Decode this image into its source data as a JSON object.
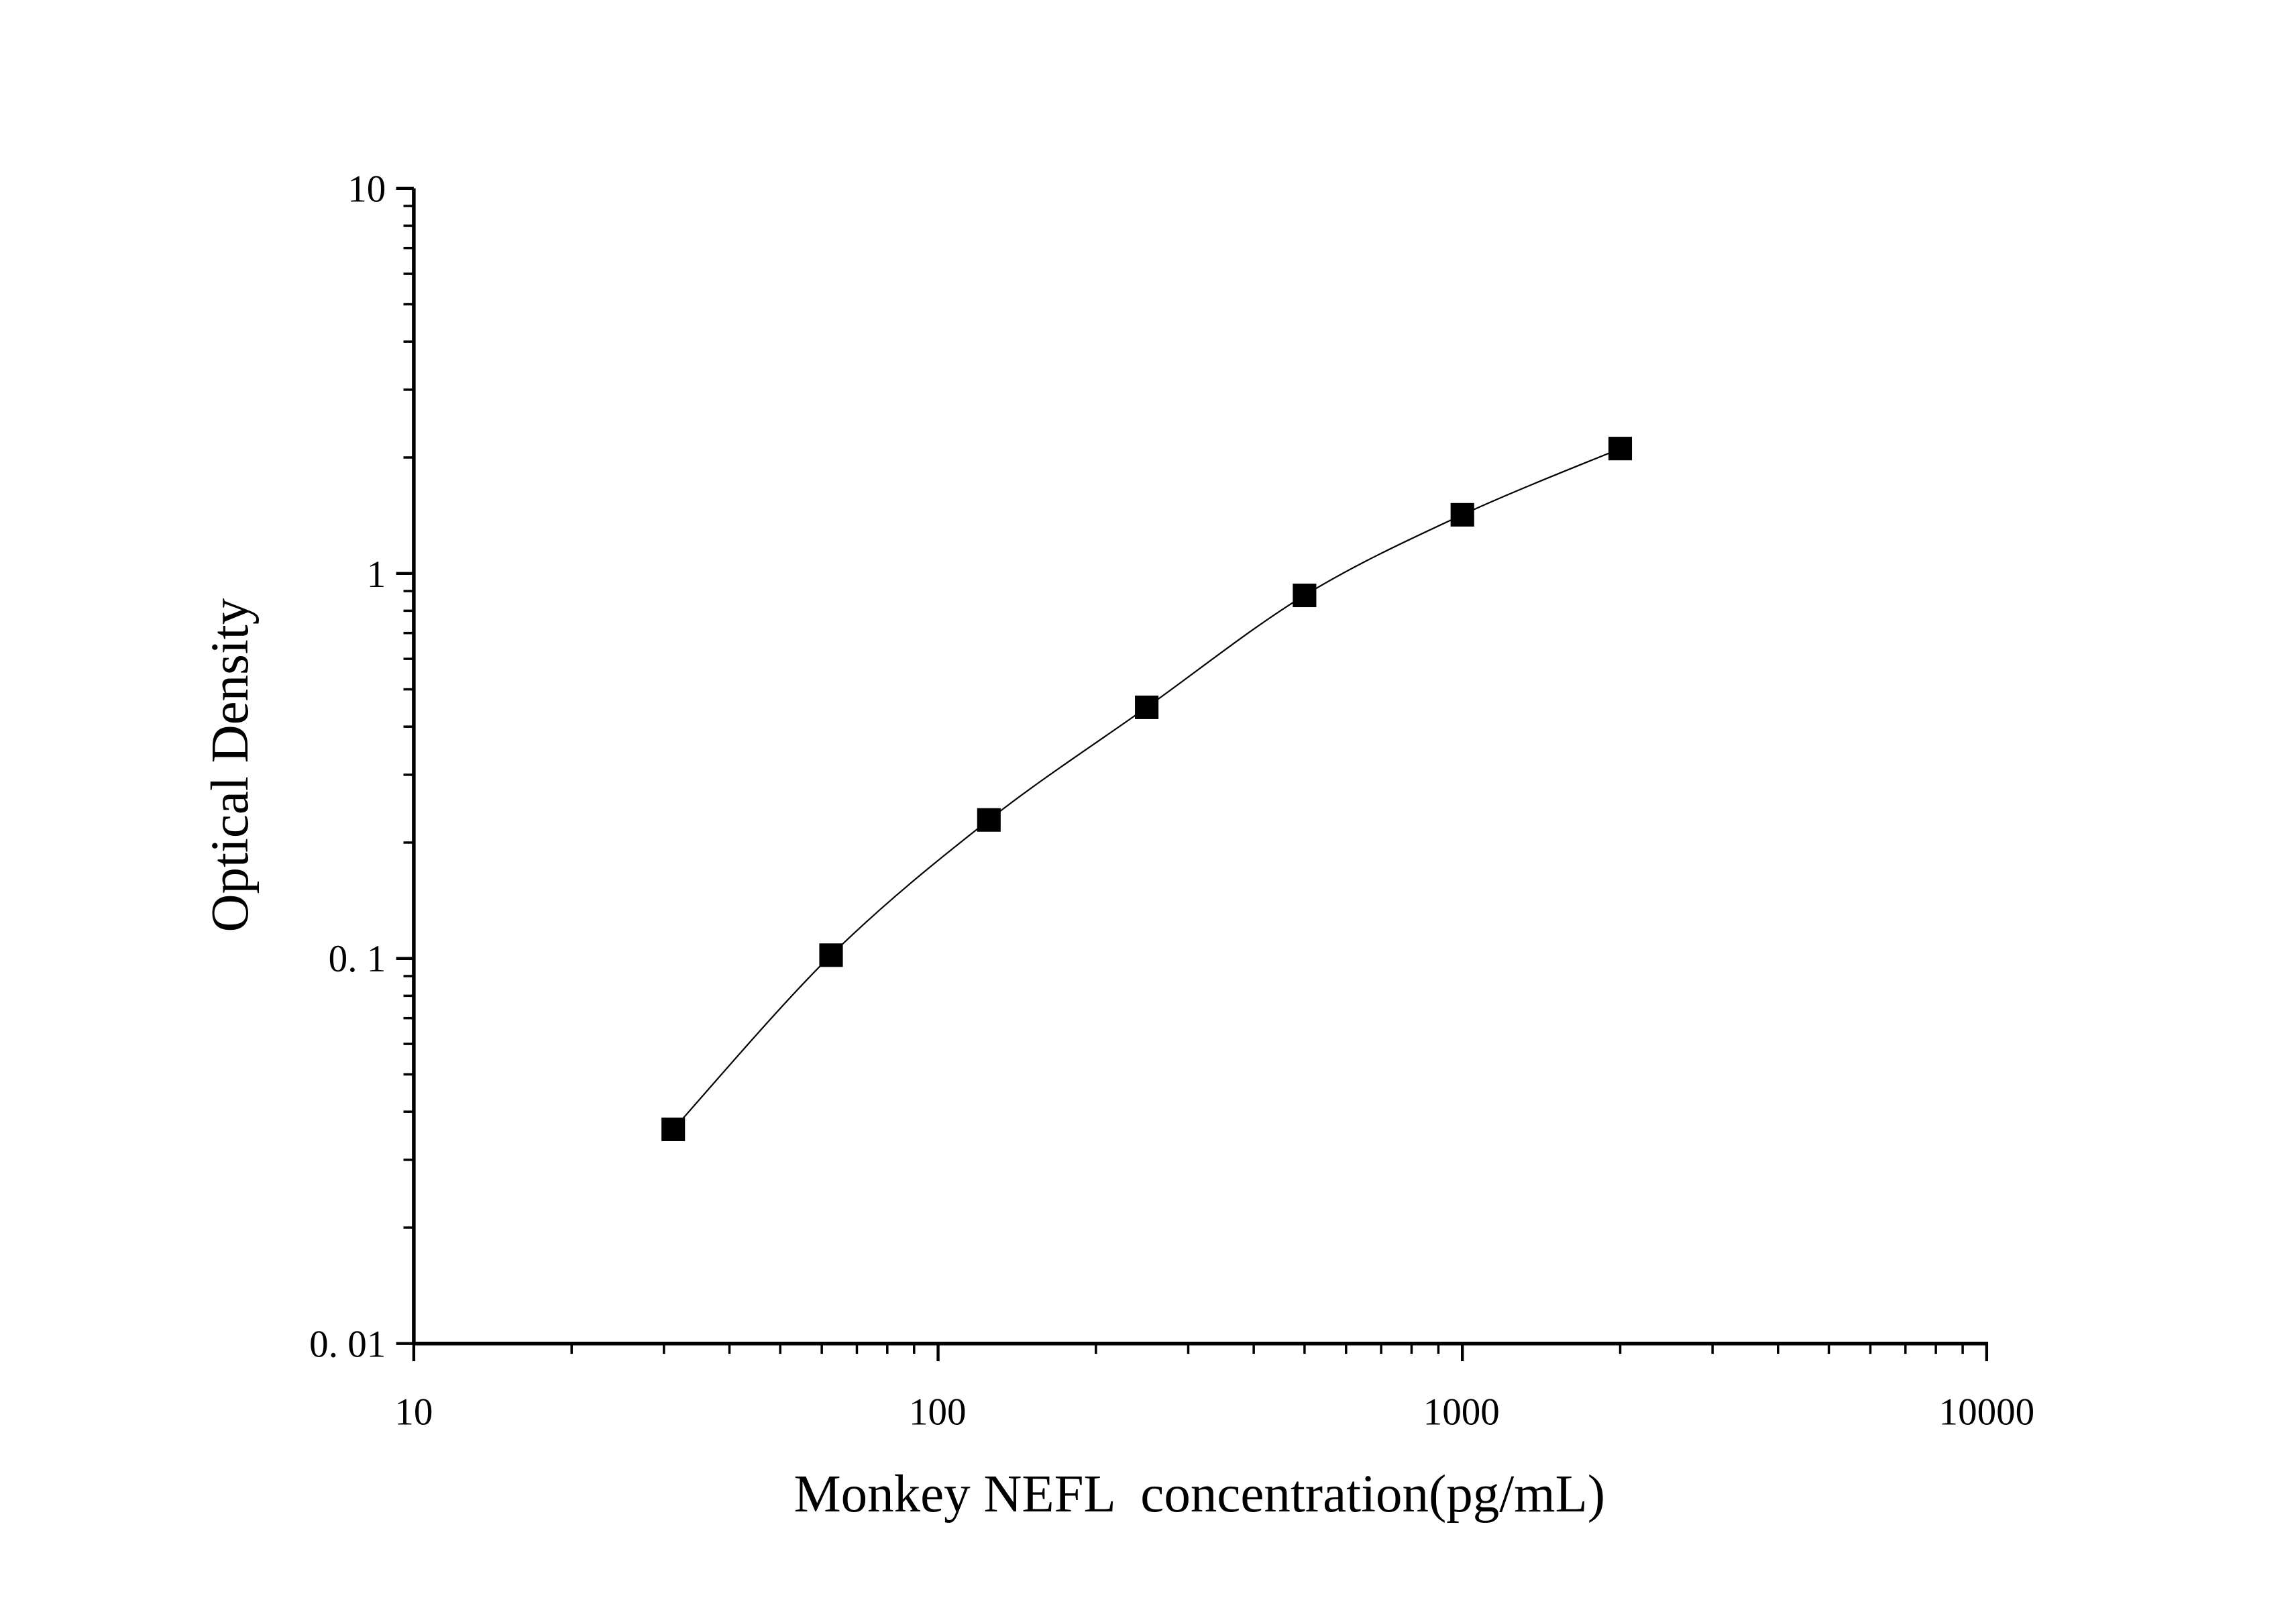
{
  "chart_data": {
    "type": "scatter",
    "title": "",
    "xlabel": "Monkey NEFL  concentration(pg/mL)",
    "ylabel": "Optical Density",
    "xscale": "log",
    "yscale": "log",
    "xlim": [
      10,
      10000
    ],
    "ylim": [
      0.01,
      10
    ],
    "xticks": [
      "10",
      "100",
      "1000",
      "10000"
    ],
    "yticks": [
      "0. 01",
      "0. 1",
      "1",
      "10"
    ],
    "grid": false,
    "legend": "none",
    "marker": "square",
    "fit_curve": true,
    "color": "#000000",
    "series": [
      {
        "x": [
          31.25,
          62.5,
          125,
          250,
          500,
          1000,
          2000
        ],
        "y": [
          0.036,
          0.102,
          0.229,
          0.449,
          0.877,
          1.42,
          2.11
        ]
      }
    ]
  }
}
